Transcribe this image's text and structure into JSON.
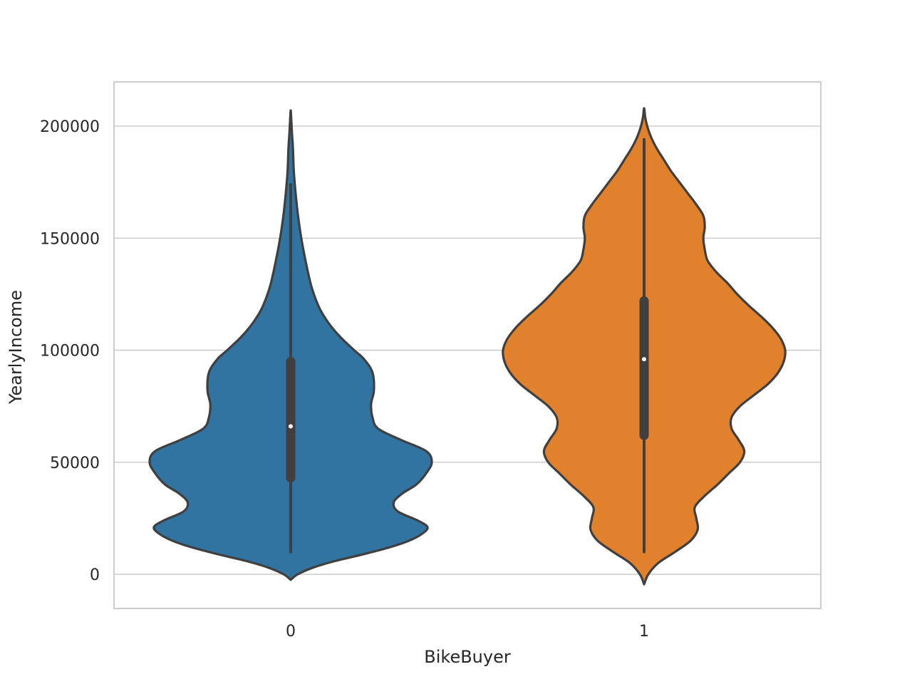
{
  "chart_data": {
    "type": "violin",
    "title": "",
    "xlabel": "BikeBuyer",
    "ylabel": "YearlyIncome",
    "ylim": [
      -15000,
      220000
    ],
    "yticks": [
      0,
      50000,
      100000,
      150000,
      200000
    ],
    "ytick_labels": [
      "0",
      "50000",
      "100000",
      "150000",
      "200000"
    ],
    "grid": true,
    "categories": [
      "0",
      "1"
    ],
    "series": [
      {
        "name": "0",
        "color": "#3274a1",
        "min": 10000,
        "q1": 43000,
        "median": 66000,
        "q3": 95000,
        "max": 174000,
        "density_profile": [
          [
            -2500,
            0.0
          ],
          [
            0,
            0.05
          ],
          [
            3000,
            0.16
          ],
          [
            6000,
            0.32
          ],
          [
            9000,
            0.52
          ],
          [
            12000,
            0.7
          ],
          [
            15000,
            0.84
          ],
          [
            18000,
            0.93
          ],
          [
            21000,
            0.97
          ],
          [
            24000,
            0.9
          ],
          [
            28000,
            0.76
          ],
          [
            32000,
            0.73
          ],
          [
            36000,
            0.79
          ],
          [
            40000,
            0.89
          ],
          [
            45000,
            0.96
          ],
          [
            50000,
            1.0
          ],
          [
            55000,
            0.96
          ],
          [
            60000,
            0.78
          ],
          [
            65000,
            0.62
          ],
          [
            70000,
            0.58
          ],
          [
            76000,
            0.57
          ],
          [
            82000,
            0.59
          ],
          [
            90000,
            0.58
          ],
          [
            96000,
            0.52
          ],
          [
            100000,
            0.45
          ],
          [
            106000,
            0.35
          ],
          [
            112000,
            0.27
          ],
          [
            118000,
            0.21
          ],
          [
            124000,
            0.17
          ],
          [
            130000,
            0.14
          ],
          [
            140000,
            0.105
          ],
          [
            150000,
            0.075
          ],
          [
            160000,
            0.052
          ],
          [
            170000,
            0.035
          ],
          [
            180000,
            0.022
          ],
          [
            190000,
            0.016
          ],
          [
            197000,
            0.009
          ],
          [
            203000,
            0.004
          ],
          [
            207000,
            0.0
          ]
        ]
      },
      {
        "name": "1",
        "color": "#e1812c",
        "min": 10000,
        "q1": 62000,
        "median": 96000,
        "q3": 122000,
        "max": 194000,
        "density_profile": [
          [
            -4500,
            0.0
          ],
          [
            0,
            0.03
          ],
          [
            5000,
            0.1
          ],
          [
            10000,
            0.22
          ],
          [
            15000,
            0.33
          ],
          [
            20000,
            0.38
          ],
          [
            25000,
            0.37
          ],
          [
            30000,
            0.36
          ],
          [
            35000,
            0.43
          ],
          [
            40000,
            0.52
          ],
          [
            45000,
            0.6
          ],
          [
            50000,
            0.68
          ],
          [
            55000,
            0.71
          ],
          [
            60000,
            0.67
          ],
          [
            65000,
            0.62
          ],
          [
            70000,
            0.62
          ],
          [
            75000,
            0.68
          ],
          [
            80000,
            0.78
          ],
          [
            85000,
            0.88
          ],
          [
            90000,
            0.95
          ],
          [
            95000,
            0.99
          ],
          [
            100000,
            1.0
          ],
          [
            105000,
            0.97
          ],
          [
            110000,
            0.91
          ],
          [
            115000,
            0.83
          ],
          [
            120000,
            0.74
          ],
          [
            125000,
            0.66
          ],
          [
            130000,
            0.59
          ],
          [
            135000,
            0.51
          ],
          [
            140000,
            0.45
          ],
          [
            145000,
            0.43
          ],
          [
            150000,
            0.42
          ],
          [
            155000,
            0.43
          ],
          [
            160000,
            0.42
          ],
          [
            165000,
            0.37
          ],
          [
            170000,
            0.31
          ],
          [
            175000,
            0.25
          ],
          [
            180000,
            0.19
          ],
          [
            185000,
            0.14
          ],
          [
            190000,
            0.09
          ],
          [
            195000,
            0.05
          ],
          [
            200000,
            0.022
          ],
          [
            204000,
            0.008
          ],
          [
            208000,
            0.0
          ]
        ]
      }
    ]
  }
}
